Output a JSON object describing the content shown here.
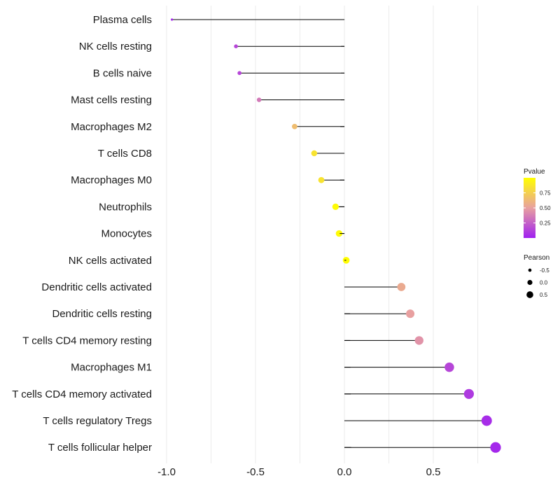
{
  "chart_data": {
    "type": "lollipop",
    "xlim": [
      -1.0,
      0.85
    ],
    "x_ticks": [
      -1.0,
      -0.5,
      0.0,
      0.5
    ],
    "x_tick_labels": [
      "-1.0",
      "-0.5",
      "0.0",
      "0.5"
    ],
    "grid": true,
    "categories": [
      "Plasma cells",
      "NK cells resting",
      "B cells naive",
      "Mast cells resting",
      "Macrophages M2",
      "T cells CD8",
      "Macrophages M0",
      "Neutrophils",
      "Monocytes",
      "NK cells activated",
      "Dendritic cells activated",
      "Dendritic cells resting",
      "T cells CD4 memory resting",
      "Macrophages M1",
      "T cells CD4 memory activated",
      "T cells regulatory  Tregs",
      "T cells follicular helper"
    ],
    "values": [
      -0.97,
      -0.61,
      -0.59,
      -0.48,
      -0.28,
      -0.17,
      -0.13,
      -0.05,
      -0.03,
      0.01,
      0.32,
      0.37,
      0.42,
      0.59,
      0.7,
      0.8,
      0.85
    ],
    "pvalues": [
      0.02,
      0.15,
      0.15,
      0.35,
      0.65,
      0.85,
      0.85,
      0.98,
      0.98,
      0.99,
      0.55,
      0.5,
      0.45,
      0.15,
      0.1,
      0.05,
      0.03
    ],
    "legend_pvalue": {
      "title": "Pvalue",
      "labels": [
        "0.75",
        "0.50",
        "0.25"
      ],
      "values": [
        0.75,
        0.5,
        0.25
      ],
      "color_low": "#A020F0",
      "color_mid": "#E8A0A0",
      "color_high": "#FFFF00"
    },
    "legend_pearson": {
      "title": "Pearson",
      "labels": [
        "-0.5",
        "0.0",
        "0.5"
      ],
      "values": [
        -0.5,
        0.0,
        0.5
      ]
    },
    "colors": {
      "stem": "#000000",
      "grid": "#ebebeb"
    }
  }
}
